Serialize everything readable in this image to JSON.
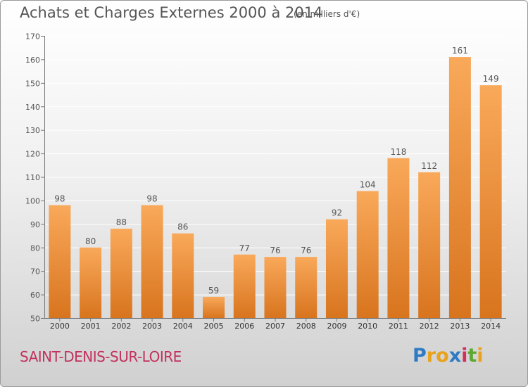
{
  "title": "Achats et Charges Externes 2000 à 2014",
  "subtitle": "(en milliers d'€)",
  "place": "SAINT-DENIS-SUR-LOIRE",
  "logo": {
    "letters": [
      "P",
      "r",
      "o",
      "x",
      "i",
      "t",
      "i"
    ],
    "colors": [
      "#2e7bc4",
      "#e8a21c",
      "#e8a21c",
      "#2e7bc4",
      "#d0305a",
      "#5ca832",
      "#e8a21c"
    ]
  },
  "colors": {
    "bar_light": "#f9a95a",
    "bar_dark": "#d8741e",
    "grid": "#ffffff",
    "text": "#555555",
    "place": "#c2325e"
  },
  "chart_data": {
    "type": "bar",
    "title": "Achats et Charges Externes 2000 à 2014",
    "categories": [
      "2000",
      "2001",
      "2002",
      "2003",
      "2004",
      "2005",
      "2006",
      "2007",
      "2008",
      "2009",
      "2010",
      "2011",
      "2012",
      "2013",
      "2014"
    ],
    "values": [
      98,
      80,
      88,
      98,
      86,
      59,
      77,
      76,
      76,
      92,
      104,
      118,
      112,
      161,
      149
    ],
    "ylim": [
      50,
      170
    ],
    "yticks": [
      50,
      60,
      70,
      80,
      90,
      100,
      110,
      120,
      130,
      140,
      150,
      160,
      170
    ],
    "grid": true,
    "xlabel": "",
    "ylabel": ""
  }
}
